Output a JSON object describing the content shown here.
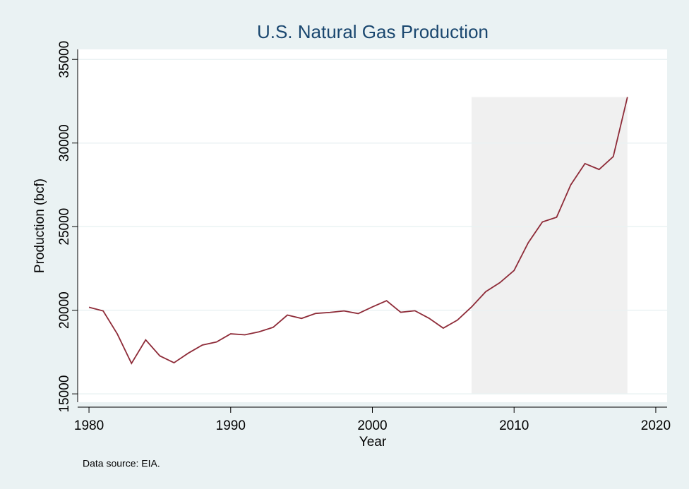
{
  "chart_data": {
    "type": "line",
    "title": "U.S. Natural Gas Production",
    "x_label": "Year",
    "y_label": "Production (bcf)",
    "note": "Data source: EIA.",
    "x": [
      1980,
      1981,
      1982,
      1983,
      1984,
      1985,
      1986,
      1987,
      1988,
      1989,
      1990,
      1991,
      1992,
      1993,
      1994,
      1995,
      1996,
      1997,
      1998,
      1999,
      2000,
      2001,
      2002,
      2003,
      2004,
      2005,
      2006,
      2007,
      2008,
      2009,
      2010,
      2011,
      2012,
      2013,
      2014,
      2015,
      2016,
      2017,
      2018
    ],
    "series": [
      {
        "color": "#8e2b38",
        "values": [
          20180,
          19960,
          18580,
          16820,
          18230,
          17270,
          16860,
          17430,
          17920,
          18100,
          18590,
          18530,
          18710,
          18980,
          19710,
          19510,
          19810,
          19870,
          19960,
          19800,
          20200,
          20570,
          19880,
          19970,
          19520,
          18930,
          19410,
          20200,
          21110,
          21650,
          22380,
          24040,
          25280,
          25560,
          27500,
          28770,
          28420,
          29190,
          32750
        ]
      }
    ],
    "shade": {
      "x": [
        2007,
        2018
      ],
      "y": [
        15000,
        32750
      ],
      "color": "#f0f0f0"
    },
    "xlim": [
      1979.2,
      2020.8
    ],
    "ylim": [
      14500,
      35600
    ],
    "xticks": [
      1980,
      1990,
      2000,
      2010,
      2020
    ],
    "yticks": [
      15000,
      20000,
      25000,
      30000,
      35000
    ],
    "grid": true
  }
}
